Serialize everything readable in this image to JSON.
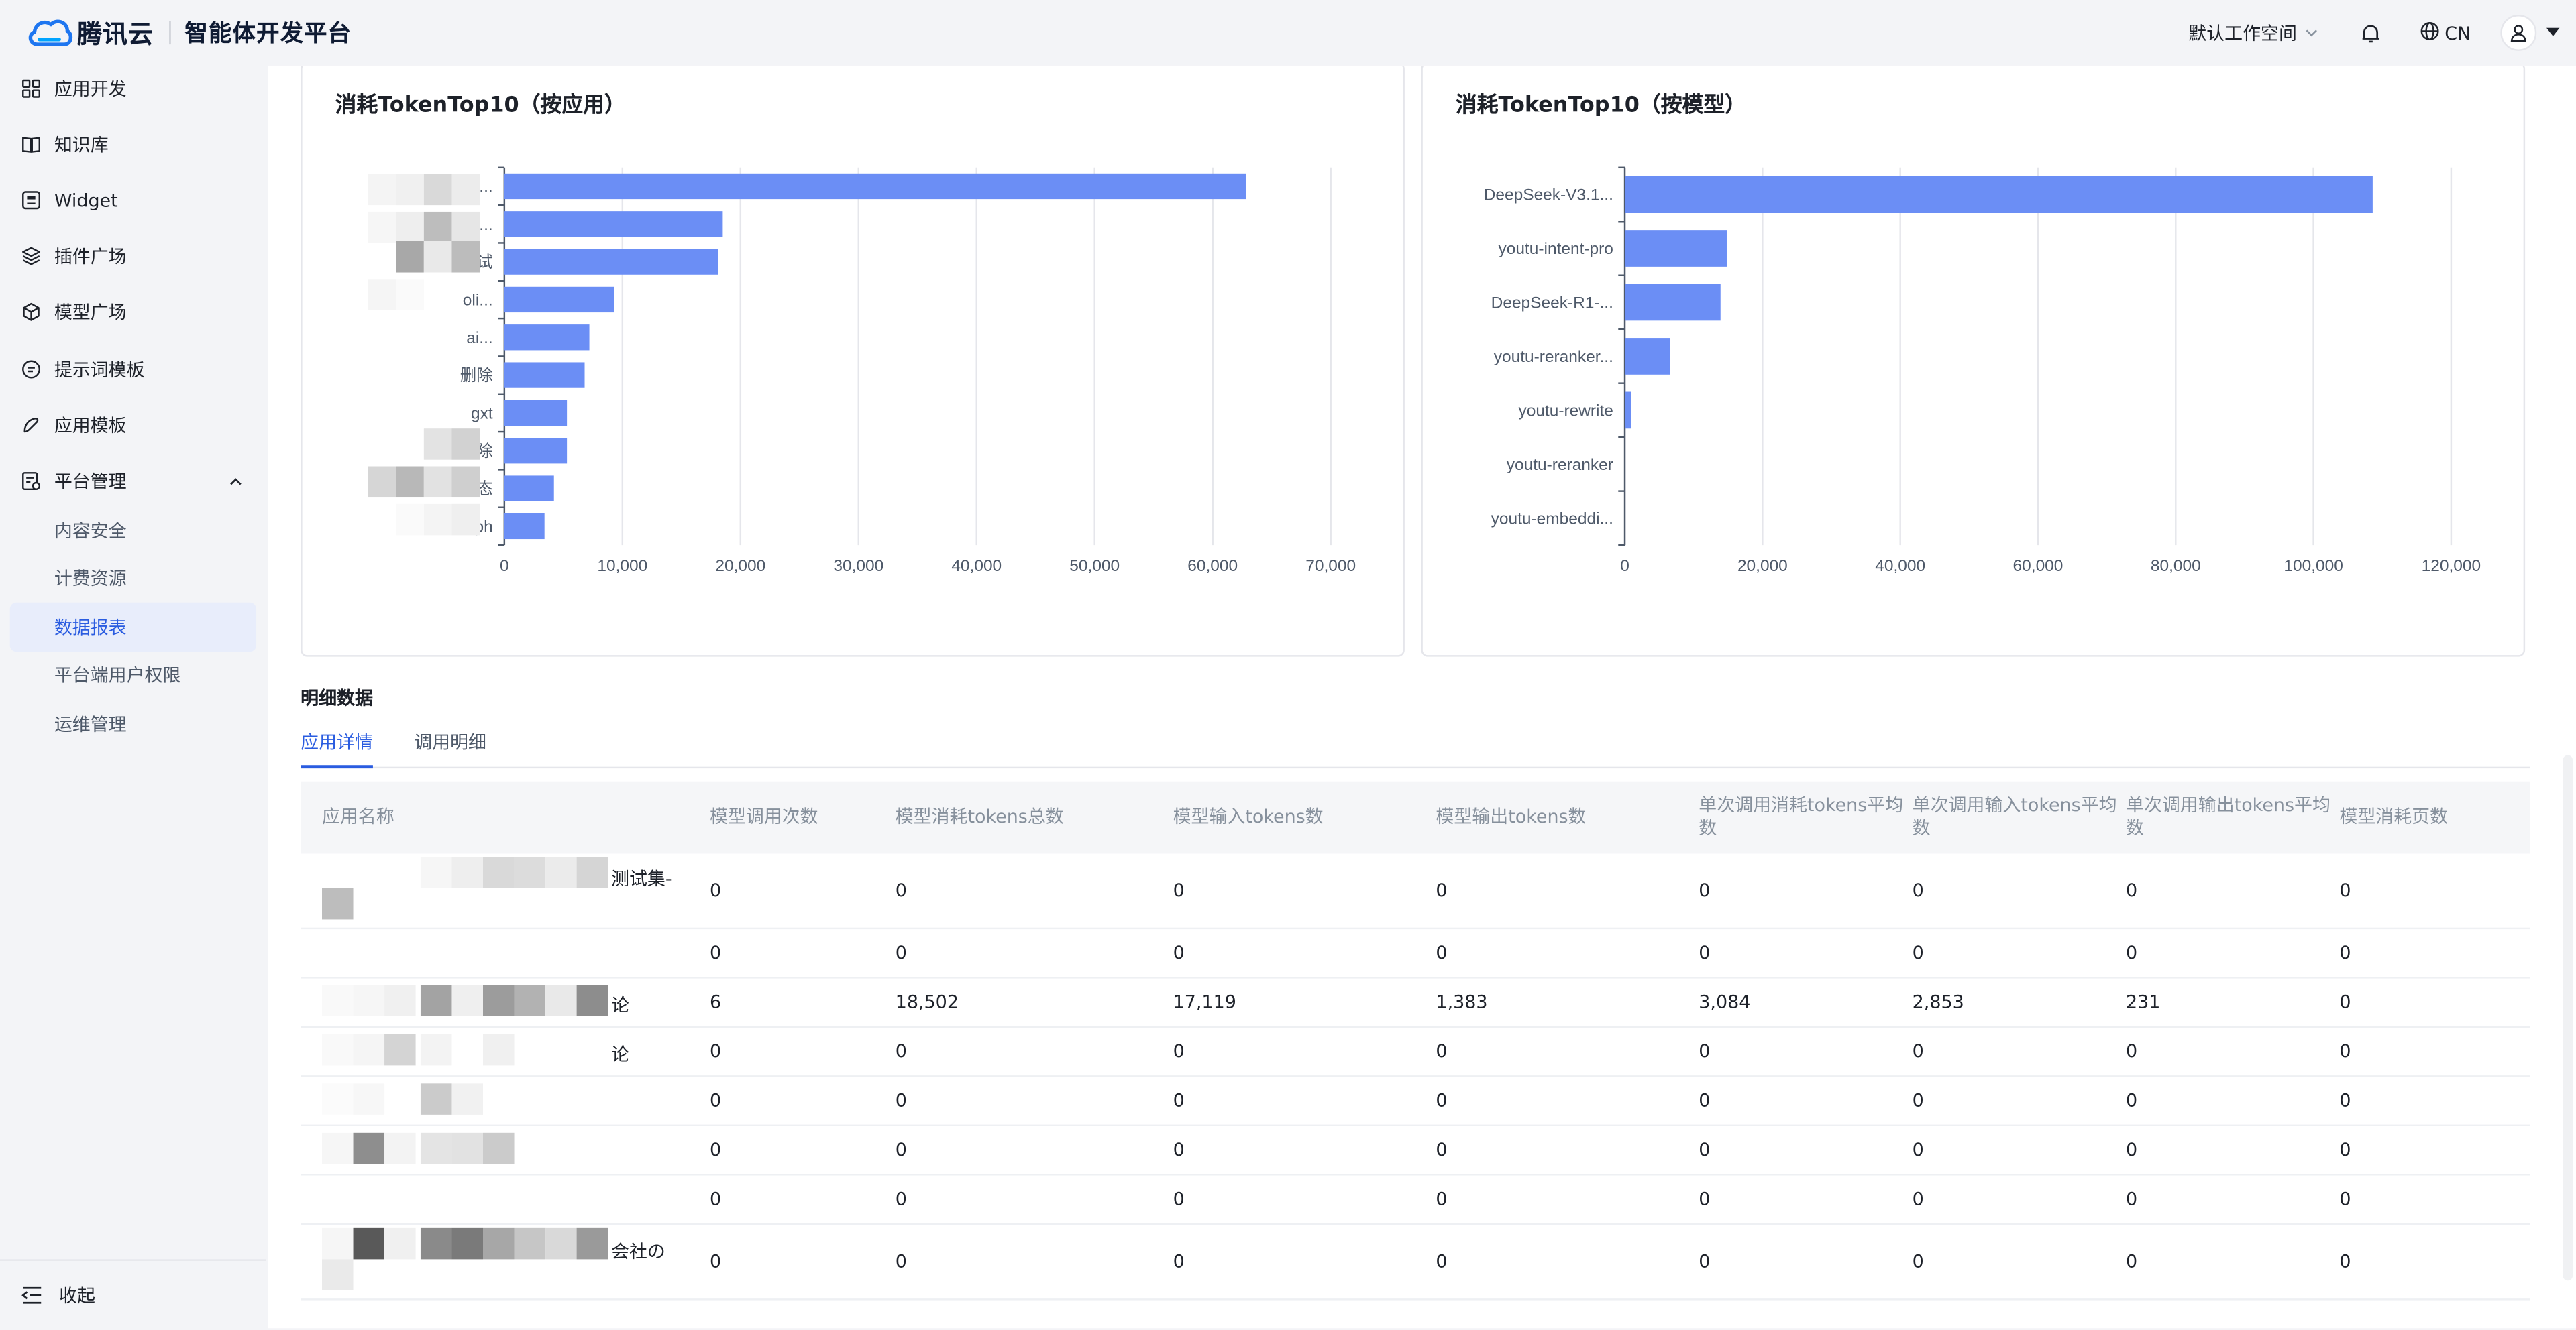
{
  "header": {
    "brand": "腾讯云",
    "platform_title": "智能体开发平台",
    "workspace": "默认工作空间",
    "language": "CN"
  },
  "sidebar": {
    "items": [
      {
        "label": "应用开发",
        "icon": "grid-icon"
      },
      {
        "label": "知识库",
        "icon": "book-icon"
      },
      {
        "label": "Widget",
        "icon": "widget-icon"
      },
      {
        "label": "插件广场",
        "icon": "layers-icon"
      },
      {
        "label": "模型广场",
        "icon": "cube-icon"
      },
      {
        "label": "提示词模板",
        "icon": "prompt-icon"
      },
      {
        "label": "应用模板",
        "icon": "template-icon"
      },
      {
        "label": "平台管理",
        "icon": "admin-icon"
      }
    ],
    "sub_items": [
      {
        "label": "内容安全"
      },
      {
        "label": "计费资源"
      },
      {
        "label": "数据报表"
      },
      {
        "label": "平台端用户权限"
      },
      {
        "label": "运维管理"
      }
    ],
    "collapse_label": "收起"
  },
  "charts": {
    "by_app_title": "消耗TokenTop10（按应用）",
    "by_model_title": "消耗TokenTop10（按模型）"
  },
  "chart_data": [
    {
      "type": "bar",
      "orientation": "horizontal",
      "title": "消耗TokenTop10（按应用）",
      "categories": [
        "er...",
        "05...",
        "测试",
        "oli...",
        "ai...",
        "删除",
        "gxt",
        "删除",
        "模态",
        "aph"
      ],
      "values": [
        62800,
        18500,
        18100,
        9300,
        7200,
        6800,
        5300,
        5300,
        4200,
        3400
      ],
      "xlim": [
        0,
        70000
      ],
      "xticks": [
        "0",
        "10,000",
        "20,000",
        "30,000",
        "40,000",
        "50,000",
        "60,000",
        "70,000"
      ],
      "grid": true,
      "color": "#6b8ef5"
    },
    {
      "type": "bar",
      "orientation": "horizontal",
      "title": "消耗TokenTop10（按模型）",
      "categories": [
        "DeepSeek-V3.1...",
        "youtu-intent-pro",
        "DeepSeek-R1-...",
        "youtu-reranker...",
        "youtu-rewrite",
        "youtu-reranker",
        "youtu-embeddi..."
      ],
      "values": [
        108600,
        14800,
        13900,
        6600,
        900,
        0,
        0
      ],
      "xlim": [
        0,
        120000
      ],
      "xticks": [
        "0",
        "20,000",
        "40,000",
        "60,000",
        "80,000",
        "100,000",
        "120,000"
      ],
      "grid": true,
      "color": "#6b8ef5"
    }
  ],
  "detail": {
    "title": "明细数据",
    "tabs": [
      "应用详情",
      "调用明细"
    ],
    "columns": [
      "应用名称",
      "模型调用次数",
      "模型消耗tokens总数",
      "模型输入tokens数",
      "模型输出tokens数",
      "单次调用消耗tokens平均数",
      "单次调用输入tokens平均数",
      "单次调用输出tokens平均数",
      "模型消耗页数"
    ],
    "rows": [
      {
        "name_tail": "测试集-",
        "values": [
          "0",
          "0",
          "0",
          "0",
          "0",
          "0",
          "0",
          "0"
        ]
      },
      {
        "name_tail": "",
        "values": [
          "0",
          "0",
          "0",
          "0",
          "0",
          "0",
          "0",
          "0"
        ]
      },
      {
        "name_tail": "论",
        "values": [
          "6",
          "18,502",
          "17,119",
          "1,383",
          "3,084",
          "2,853",
          "231",
          "0"
        ]
      },
      {
        "name_tail": "论",
        "values": [
          "0",
          "0",
          "0",
          "0",
          "0",
          "0",
          "0",
          "0"
        ]
      },
      {
        "name_tail": "",
        "values": [
          "0",
          "0",
          "0",
          "0",
          "0",
          "0",
          "0",
          "0"
        ]
      },
      {
        "name_tail": "",
        "values": [
          "0",
          "0",
          "0",
          "0",
          "0",
          "0",
          "0",
          "0"
        ]
      },
      {
        "name_tail": "",
        "values": [
          "0",
          "0",
          "0",
          "0",
          "0",
          "0",
          "0",
          "0"
        ]
      },
      {
        "name_tail": "会社の",
        "values": [
          "0",
          "0",
          "0",
          "0",
          "0",
          "0",
          "0",
          "0"
        ]
      }
    ]
  }
}
